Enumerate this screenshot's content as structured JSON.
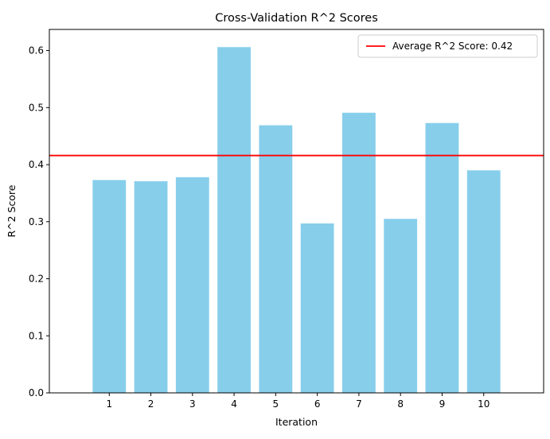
{
  "chart_data": {
    "type": "bar",
    "title": "Cross-Validation R^2 Scores",
    "xlabel": "Iteration",
    "ylabel": "R^2 Score",
    "categories": [
      "1",
      "2",
      "3",
      "4",
      "5",
      "6",
      "7",
      "8",
      "9",
      "10"
    ],
    "values": [
      0.373,
      0.371,
      0.378,
      0.606,
      0.469,
      0.297,
      0.491,
      0.305,
      0.473,
      0.39
    ],
    "ylim": [
      0,
      0.637
    ],
    "yticks": [
      0.0,
      0.1,
      0.2,
      0.3,
      0.4,
      0.5,
      0.6
    ],
    "ytick_labels": [
      "0.0",
      "0.1",
      "0.2",
      "0.3",
      "0.4",
      "0.5",
      "0.6"
    ],
    "bar_color": "#87CEEB",
    "reference_line": {
      "value": 0.416,
      "color": "#FF0000",
      "label": "Average R^2 Score: 0.42"
    },
    "legend_position": "upper right",
    "grid": false
  }
}
